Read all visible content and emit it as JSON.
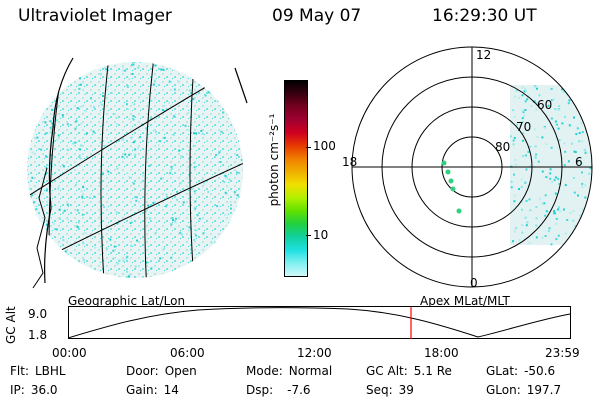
{
  "header": {
    "instrument": "Ultraviolet Imager",
    "date": "09 May 07",
    "time": "16:29:30 UT"
  },
  "colorbar": {
    "unit_label": "photon cm⁻²s⁻¹",
    "ticks": [
      "100",
      "10"
    ],
    "colors": [
      "#000000",
      "#3a0010",
      "#780020",
      "#a00030",
      "#d00020",
      "#e83a00",
      "#f08000",
      "#f0b000",
      "#f0e000",
      "#b0f000",
      "#60e000",
      "#20d040",
      "#10d0a0",
      "#20e0e0",
      "#80f0f0",
      "#d0f8f8"
    ]
  },
  "polar_plot": {
    "mlt_labels": [
      "12",
      "18",
      "6",
      "0"
    ],
    "lat_labels": [
      "60",
      "70",
      "80"
    ]
  },
  "altitude_plot": {
    "left_title": "Geographic Lat/Lon",
    "right_title": "Apex MLat/MLT",
    "y_axis_label": "GC Alt",
    "y_ticks": [
      "9.0",
      "1.8"
    ],
    "x_ticks": [
      "00:00",
      "06:00",
      "12:00",
      "18:00",
      "23:59"
    ],
    "marker_color": "#ff0000"
  },
  "info": {
    "filter_label": "Flt:",
    "filter_value": "LBHL",
    "ip_label": "IP:",
    "ip_value": "36.0",
    "door_label": "Door:",
    "door_value": "Open",
    "gain_label": "Gain:",
    "gain_value": "14",
    "mode_label": "Mode:",
    "mode_value": "Normal",
    "dsp_label": "Dsp:",
    "dsp_value": "-7.6",
    "gcalt_label": "GC Alt:",
    "gcalt_value": "5.1 Re",
    "seq_label": "Seq:",
    "seq_value": "39",
    "glat_label": "GLat:",
    "glat_value": "-50.6",
    "glon_label": "GLon:",
    "glon_value": "197.7"
  }
}
